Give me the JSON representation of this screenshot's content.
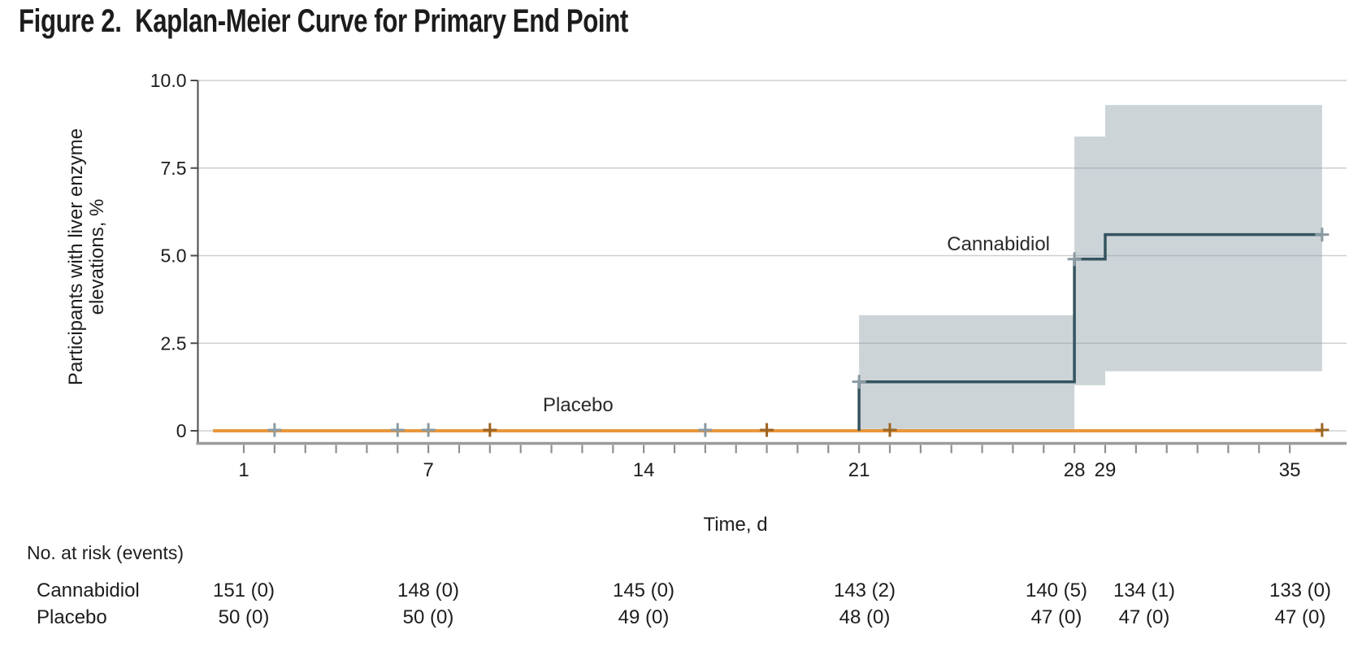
{
  "figure": {
    "title": "Figure 2.  Kaplan-Meier Curve for Primary End Point"
  },
  "chart_data": {
    "type": "line",
    "subtype": "kaplan-meier-step",
    "title": "Figure 2. Kaplan-Meier Curve for Primary End Point",
    "xlabel": "Time, d",
    "ylabel_lines": [
      "Participants with liver enzyme",
      "elevations, %"
    ],
    "xlim": [
      0,
      36.8
    ],
    "ylim": [
      0,
      10
    ],
    "grid": "horizontal",
    "minor_xticks_every_day": true,
    "xtick_labels": [
      "1",
      "7",
      "14",
      "21",
      "28",
      "29",
      "35"
    ],
    "xtick_values": [
      1,
      7,
      14,
      21,
      28,
      29,
      35
    ],
    "ytick_labels": [
      "10.0",
      "7.5",
      "5.0",
      "2.5",
      "0"
    ],
    "ytick_values": [
      10,
      7.5,
      5,
      2.5,
      0
    ],
    "colors": {
      "cannabidiol_line": "#35545f",
      "cannabidiol_censor": "#8b9aa2",
      "ci_band": "#ccd4d7",
      "placebo_line": "#e9973c",
      "placebo_censor": "#9c6423",
      "gridline": "rgba(140,153,160,0.45)",
      "axis_dark": "#4a4a4a",
      "axis_gray": "#9b9b9b",
      "text": "#1d1d1d"
    },
    "series": [
      {
        "name": "Cannabidiol",
        "color": "#35545f",
        "censor_color": "#8b9aa2",
        "ci_color": "#ccd4d7",
        "step_points_day_pct": [
          [
            0,
            0
          ],
          [
            21,
            0
          ],
          [
            21,
            1.4
          ],
          [
            28,
            1.4
          ],
          [
            28,
            4.9
          ],
          [
            29,
            4.9
          ],
          [
            29,
            5.6
          ],
          [
            36.05,
            5.6
          ]
        ],
        "censor_marks_day_pct": [
          [
            2,
            0
          ],
          [
            6,
            0
          ],
          [
            7,
            0
          ],
          [
            16,
            0
          ],
          [
            21,
            1.4
          ],
          [
            28,
            4.9
          ],
          [
            36.05,
            5.6
          ]
        ],
        "ci_bands_day_pct": [
          {
            "from_day": 21,
            "to_day": 28,
            "low": 0.05,
            "high": 3.3
          },
          {
            "from_day": 28,
            "to_day": 29,
            "low": 1.3,
            "high": 8.4
          },
          {
            "from_day": 29,
            "to_day": 36.05,
            "low": 1.7,
            "high": 9.3
          }
        ]
      },
      {
        "name": "Placebo",
        "color": "#e9973c",
        "censor_color": "#9c6423",
        "step_points_day_pct": [
          [
            0,
            0
          ],
          [
            36.05,
            0
          ]
        ],
        "censor_marks_day_pct": [
          [
            9,
            0
          ],
          [
            18,
            0
          ],
          [
            22,
            0
          ],
          [
            36.05,
            0
          ]
        ],
        "ci_bands_day_pct": []
      }
    ],
    "risk_table": {
      "header": "No. at risk (events)",
      "time_days": [
        1,
        7,
        14,
        21,
        28,
        29,
        35
      ],
      "rows": [
        {
          "label": "Cannabidiol",
          "values": [
            "151 (0)",
            "148 (0)",
            "145 (0)",
            "143 (2)",
            "140 (5)",
            "134 (1)",
            "133 (0)"
          ]
        },
        {
          "label": "Placebo",
          "values": [
            "50 (0)",
            "50 (0)",
            "49 (0)",
            "48 (0)",
            "47 (0)",
            "47 (0)",
            "47 (0)"
          ]
        }
      ]
    }
  }
}
